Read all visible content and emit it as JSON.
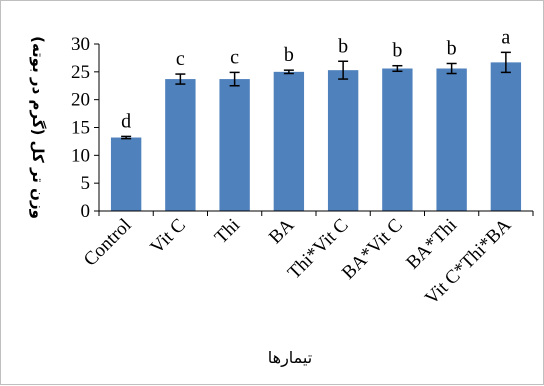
{
  "chart_data": {
    "type": "bar",
    "categories": [
      "Control",
      "Vit C",
      "Thi",
      "BA",
      "Thi*Vit C",
      "BA*Vit C",
      "BA*Thi",
      "Vit C*Thi*BA"
    ],
    "values": [
      13.2,
      23.7,
      23.7,
      25.0,
      25.3,
      25.6,
      25.6,
      26.7
    ],
    "errors": [
      0.2,
      0.9,
      1.2,
      0.3,
      1.6,
      0.5,
      0.9,
      1.8
    ],
    "significance_letters": [
      "d",
      "c",
      "c",
      "b",
      "b",
      "b",
      "b",
      "a"
    ],
    "ylim": [
      0,
      30
    ],
    "y_ticks": [
      0,
      5,
      10,
      15,
      20,
      25,
      30
    ],
    "ylabel": "وزن تر کل (گرم در بوته)",
    "xlabel": "تیمارها",
    "bar_color": "#4f81bd",
    "grid": false,
    "legend": "none"
  }
}
